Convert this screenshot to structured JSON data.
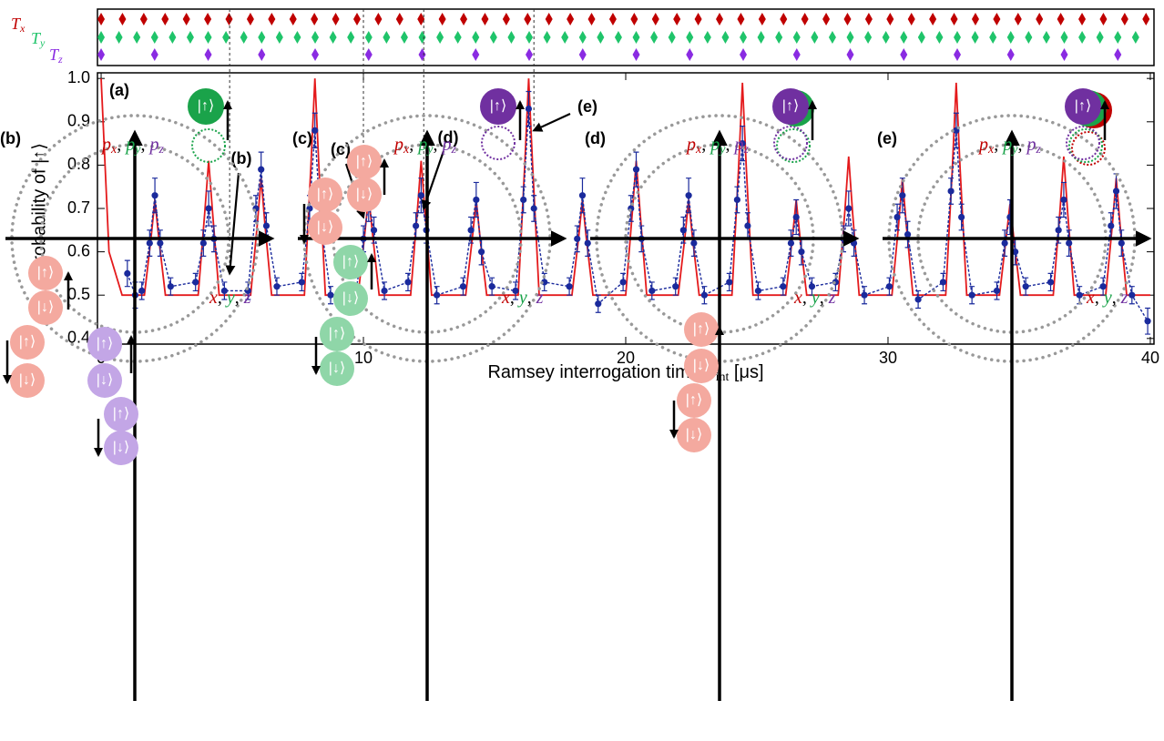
{
  "chart_data": {
    "type": "line",
    "panel_label": "(a)",
    "ylabel": "Probability of |↑⟩",
    "xlabel": {
      "text": "Ramsey interrogation time ",
      "var": "T",
      "sub": "int",
      "unit": " [μs]"
    },
    "xlim": [
      -0.14,
      40.14
    ],
    "ylim": [
      0.387,
      1.013
    ],
    "xticks": [
      0,
      10,
      20,
      30,
      40
    ],
    "yticks": [
      0.4,
      0.5,
      0.6,
      0.7,
      0.8,
      0.9,
      {
        "value": 1.0,
        "label": "1.0"
      }
    ],
    "pulse_trains": [
      {
        "base": "T",
        "sub": "x",
        "color": "#c00000",
        "period": 0.813
      },
      {
        "base": "T",
        "sub": "y",
        "color": "#1fc46a",
        "period": 0.68
      },
      {
        "base": "T",
        "sub": "z",
        "color": "#8a2be2",
        "period": 2.04
      }
    ],
    "series": [
      {
        "color": "#e41a1c",
        "style": "line",
        "x": [
          0,
          0.3,
          0.8,
          1.65,
          1.9,
          2.05,
          2.2,
          2.45,
          3.7,
          3.95,
          4.1,
          4.25,
          4.5,
          5.7,
          5.95,
          6.1,
          6.25,
          6.5,
          7.75,
          8.0,
          8.15,
          8.3,
          8.55,
          9.8,
          10.05,
          10.2,
          10.35,
          10.6,
          11.8,
          12.05,
          12.2,
          12.35,
          12.6,
          13.9,
          14.15,
          14.3,
          14.45,
          14.7,
          15.9,
          16.15,
          16.3,
          16.45,
          16.7,
          17.95,
          18.2,
          18.35,
          18.5,
          18.75,
          20.0,
          20.25,
          20.4,
          20.55,
          20.8,
          22.0,
          22.25,
          22.4,
          22.55,
          22.8,
          24.05,
          24.3,
          24.45,
          24.6,
          24.85,
          26.1,
          26.35,
          26.5,
          26.65,
          26.9,
          28.1,
          28.35,
          28.5,
          28.65,
          28.9,
          30.15,
          30.4,
          30.55,
          30.7,
          30.95,
          32.2,
          32.45,
          32.6,
          32.75,
          33.0,
          34.25,
          34.5,
          34.65,
          34.8,
          35.05,
          36.3,
          36.55,
          36.7,
          36.85,
          37.1,
          38.3,
          38.55,
          38.7,
          38.85,
          39.1,
          40
        ],
        "values": [
          1.0,
          0.6,
          0.5,
          0.5,
          0.63,
          0.72,
          0.63,
          0.5,
          0.5,
          0.69,
          0.81,
          0.69,
          0.5,
          0.5,
          0.66,
          0.77,
          0.66,
          0.5,
          0.5,
          0.8,
          1.0,
          0.8,
          0.5,
          0.5,
          0.64,
          0.73,
          0.64,
          0.5,
          0.5,
          0.69,
          0.81,
          0.69,
          0.5,
          0.5,
          0.63,
          0.72,
          0.63,
          0.5,
          0.5,
          0.8,
          1.0,
          0.8,
          0.5,
          0.5,
          0.63,
          0.72,
          0.63,
          0.5,
          0.5,
          0.69,
          0.81,
          0.69,
          0.5,
          0.5,
          0.63,
          0.72,
          0.63,
          0.5,
          0.5,
          0.79,
          0.99,
          0.79,
          0.5,
          0.5,
          0.63,
          0.72,
          0.63,
          0.5,
          0.5,
          0.69,
          0.82,
          0.69,
          0.5,
          0.5,
          0.66,
          0.77,
          0.66,
          0.5,
          0.5,
          0.79,
          0.99,
          0.79,
          0.5,
          0.5,
          0.63,
          0.71,
          0.63,
          0.5,
          0.5,
          0.69,
          0.82,
          0.69,
          0.5,
          0.5,
          0.66,
          0.77,
          0.66,
          0.5,
          0.5
        ]
      },
      {
        "color": "#1a2a9c",
        "style": "points",
        "x": [
          1.0,
          1.3,
          1.55,
          1.85,
          2.05,
          2.25,
          2.65,
          3.6,
          3.9,
          4.1,
          4.3,
          4.7,
          5.6,
          5.9,
          6.1,
          6.3,
          6.7,
          7.65,
          7.95,
          8.15,
          8.35,
          8.75,
          9.7,
          10.0,
          10.2,
          10.4,
          10.8,
          11.7,
          12.0,
          12.2,
          12.4,
          12.8,
          13.8,
          14.1,
          14.3,
          14.5,
          14.9,
          15.8,
          16.1,
          16.3,
          16.5,
          16.9,
          17.85,
          18.15,
          18.35,
          18.55,
          18.95,
          19.9,
          20.2,
          20.4,
          20.6,
          21.0,
          21.9,
          22.2,
          22.4,
          22.6,
          23.0,
          23.95,
          24.25,
          24.45,
          24.65,
          25.05,
          26.0,
          26.3,
          26.5,
          26.7,
          27.1,
          28.0,
          28.3,
          28.5,
          28.7,
          29.1,
          30.05,
          30.35,
          30.55,
          30.75,
          31.15,
          32.1,
          32.4,
          32.6,
          32.8,
          33.2,
          34.15,
          34.45,
          34.65,
          34.85,
          35.25,
          36.2,
          36.5,
          36.7,
          36.9,
          37.3,
          38.2,
          38.5,
          38.7,
          38.9,
          39.3,
          39.9
        ],
        "values": [
          0.55,
          0.5,
          0.51,
          0.62,
          0.73,
          0.62,
          0.52,
          0.53,
          0.62,
          0.7,
          0.63,
          0.51,
          0.51,
          0.7,
          0.79,
          0.66,
          0.52,
          0.53,
          0.7,
          0.88,
          0.68,
          0.5,
          0.5,
          0.63,
          0.71,
          0.65,
          0.51,
          0.53,
          0.66,
          0.73,
          0.65,
          0.5,
          0.52,
          0.65,
          0.72,
          0.6,
          0.52,
          0.51,
          0.72,
          0.93,
          0.7,
          0.53,
          0.52,
          0.63,
          0.73,
          0.62,
          0.48,
          0.53,
          0.7,
          0.79,
          0.63,
          0.51,
          0.52,
          0.65,
          0.73,
          0.62,
          0.5,
          0.53,
          0.72,
          0.85,
          0.66,
          0.51,
          0.52,
          0.62,
          0.68,
          0.6,
          0.52,
          0.53,
          0.63,
          0.7,
          0.62,
          0.5,
          0.52,
          0.68,
          0.73,
          0.64,
          0.49,
          0.53,
          0.74,
          0.88,
          0.68,
          0.5,
          0.51,
          0.62,
          0.68,
          0.6,
          0.52,
          0.53,
          0.65,
          0.72,
          0.62,
          0.5,
          0.52,
          0.66,
          0.74,
          0.62,
          0.5,
          0.44
        ],
        "errors": [
          0.03,
          0.03,
          0.02,
          0.03,
          0.04,
          0.03,
          0.02,
          0.02,
          0.03,
          0.04,
          0.03,
          0.02,
          0.02,
          0.03,
          0.04,
          0.03,
          0.02,
          0.02,
          0.03,
          0.04,
          0.03,
          0.02,
          0.02,
          0.03,
          0.04,
          0.03,
          0.02,
          0.02,
          0.03,
          0.04,
          0.03,
          0.02,
          0.02,
          0.03,
          0.04,
          0.03,
          0.02,
          0.02,
          0.03,
          0.04,
          0.03,
          0.02,
          0.02,
          0.03,
          0.04,
          0.03,
          0.02,
          0.02,
          0.03,
          0.04,
          0.03,
          0.02,
          0.02,
          0.03,
          0.04,
          0.03,
          0.02,
          0.02,
          0.03,
          0.04,
          0.03,
          0.02,
          0.02,
          0.03,
          0.04,
          0.03,
          0.02,
          0.02,
          0.03,
          0.04,
          0.03,
          0.02,
          0.02,
          0.03,
          0.04,
          0.03,
          0.02,
          0.02,
          0.03,
          0.04,
          0.03,
          0.02,
          0.02,
          0.03,
          0.04,
          0.03,
          0.02,
          0.02,
          0.03,
          0.04,
          0.03,
          0.02,
          0.02,
          0.03,
          0.04,
          0.03,
          0.02,
          0.03
        ]
      }
    ],
    "annotations": [
      {
        "label": "(b)",
        "x": 4.9,
        "y": 0.55
      },
      {
        "label": "(c)",
        "x": 10.0,
        "y": 0.68
      },
      {
        "label": "(d)",
        "x": 12.3,
        "y": 0.7
      },
      {
        "label": "(e)",
        "x": 16.5,
        "y": 0.88
      }
    ]
  },
  "diagram": {
    "panels": [
      "(b)",
      "(c)",
      "(d)",
      "(e)"
    ],
    "separator": ", ",
    "momentum_label": [
      {
        "base": "p",
        "sub": "x",
        "color": "#c00000"
      },
      {
        "base": "p",
        "sub": "y",
        "color": "#1aa34a"
      },
      {
        "base": "p",
        "sub": "z",
        "color": "#7030a0"
      }
    ],
    "position_label": [
      {
        "base": "x",
        "color": "#c00000"
      },
      {
        "base": "y",
        "color": "#1aa34a"
      },
      {
        "base": "z",
        "color": "#7030a0"
      }
    ],
    "kets": {
      "up": "|↑⟩",
      "down": "|↓⟩"
    }
  }
}
